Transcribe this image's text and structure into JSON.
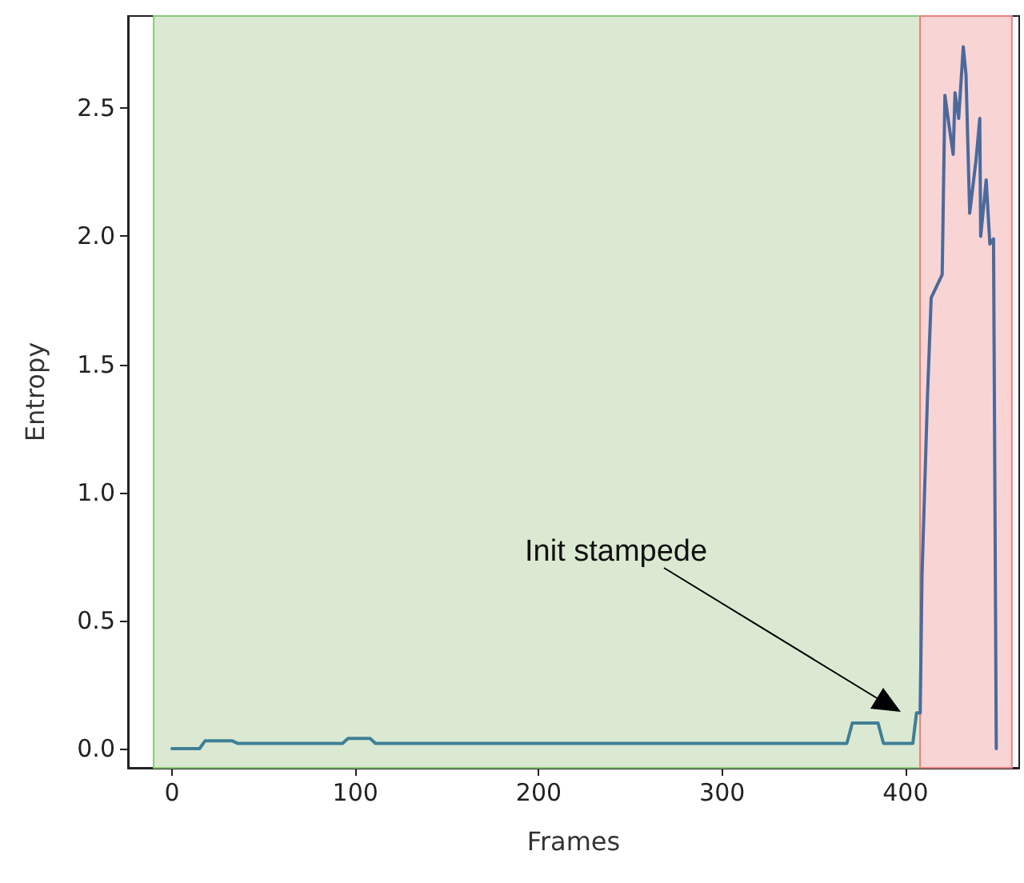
{
  "chart_data": {
    "type": "line",
    "xlabel": "Frames",
    "ylabel": "Entropy",
    "series": [
      {
        "color": "#3f7f95",
        "x": [
          0,
          15,
          18,
          33,
          36,
          93,
          96,
          108,
          111,
          368,
          371,
          385,
          388,
          404,
          406,
          408
        ],
        "values": [
          0.0,
          0.0,
          0.03,
          0.03,
          0.02,
          0.02,
          0.04,
          0.04,
          0.02,
          0.02,
          0.1,
          0.1,
          0.02,
          0.02,
          0.14,
          0.14
        ]
      },
      {
        "color": "#4a6a9c",
        "x": [
          408,
          409,
          412,
          414,
          420,
          421.5,
          424,
          426,
          427,
          429,
          431.5,
          433,
          435,
          438.5,
          440.5,
          441,
          444,
          446,
          448,
          449.5
        ],
        "values": [
          0.14,
          0.675,
          1.38,
          1.76,
          1.85,
          2.55,
          2.42,
          2.32,
          2.56,
          2.46,
          2.74,
          2.63,
          2.09,
          2.3,
          2.46,
          2.0,
          2.22,
          1.97,
          1.99,
          0.0
        ]
      }
    ],
    "xlim": [
      -24,
      462
    ],
    "xticks": [
      0,
      100,
      200,
      300,
      400
    ],
    "ylim": [
      -0.075,
      2.86
    ],
    "yticks": [
      {
        "value": 0,
        "label": "0.0"
      },
      {
        "value": 0.5,
        "label": "0.5"
      },
      {
        "value": 1,
        "label": "1.0"
      },
      {
        "value": 1.5,
        "label": "1.5"
      },
      {
        "value": 2,
        "label": "2.0"
      },
      {
        "value": 2.5,
        "label": "2.5"
      }
    ],
    "bands": [
      {
        "axis": "x",
        "from": -10,
        "to": 408,
        "color": "#dbe9d3"
      },
      {
        "axis": "x",
        "from": 408,
        "to": 458,
        "color": "#f9d4d4"
      }
    ],
    "annotations": [
      "Init stampede"
    ],
    "grid": false,
    "marker": "none",
    "line_style": "solid"
  }
}
